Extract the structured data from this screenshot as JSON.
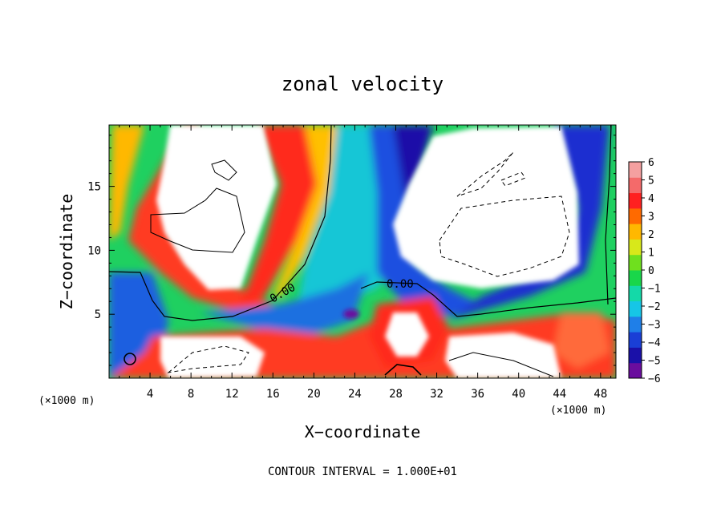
{
  "chart_data": {
    "type": "heatmap",
    "title": "zonal velocity",
    "xlabel": "X−coordinate",
    "ylabel": "Z−coordinate",
    "x_unit_label": "(×1000 m)",
    "y_unit_label": "(×1000 m)",
    "footer": "CONTOUR INTERVAL = 1.000E+01",
    "xlim": [
      0,
      49.5
    ],
    "ylim": [
      0,
      19.8
    ],
    "xticks": [
      4,
      8,
      12,
      16,
      20,
      24,
      28,
      32,
      36,
      40,
      44,
      48
    ],
    "yticks": [
      5,
      10,
      15
    ],
    "colorbar": {
      "ticks": [
        "6",
        "5",
        "4",
        "3",
        "2",
        "1",
        "0",
        "−1",
        "−2",
        "−3",
        "−4",
        "−5",
        "−6"
      ],
      "range": [
        -6,
        6
      ],
      "colors": [
        "#6a0d9e",
        "#1a10a8",
        "#1a3fd6",
        "#1f7fe8",
        "#16c6e6",
        "#14d9a8",
        "#19d64a",
        "#6fe01e",
        "#d8e81a",
        "#ffb800",
        "#ff6a00",
        "#ff2020",
        "#f46a6a",
        "#f4a0a0"
      ]
    },
    "contour_labels": [
      "0.00",
      "0.00"
    ],
    "zero_contour_label": "0.00"
  }
}
